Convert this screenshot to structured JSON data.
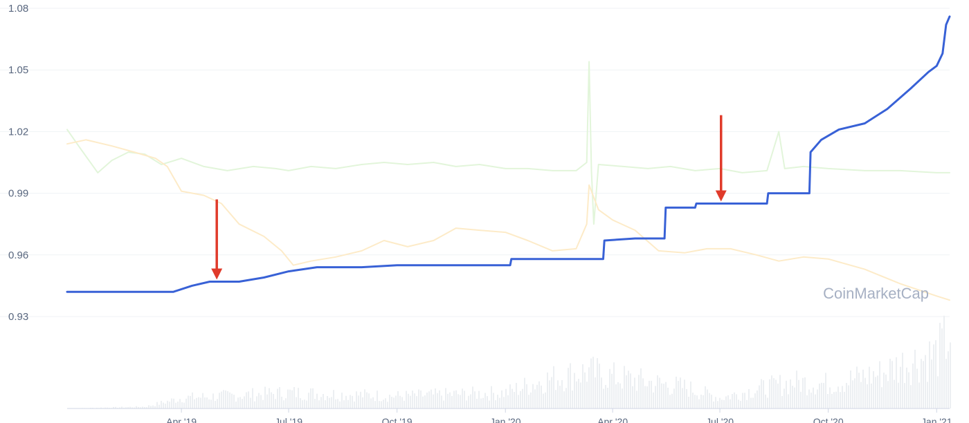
{
  "chart_data": {
    "type": "line",
    "title": "",
    "xlabel": "",
    "ylabel": "",
    "watermark": "CoinMarketCap",
    "ylim": [
      0.93,
      1.08
    ],
    "y_ticks": [
      "1.08",
      "1.05",
      "1.02",
      "0.99",
      "0.96",
      "0.93"
    ],
    "y_tick_values": [
      1.08,
      1.05,
      1.02,
      0.99,
      0.96,
      0.93
    ],
    "x_range": [
      "2018-12-25",
      "2021-01-12"
    ],
    "x_ticks": [
      {
        "date": "2019-04-01",
        "label": "Apr '19"
      },
      {
        "date": "2019-07-01",
        "label": "Jul '19"
      },
      {
        "date": "2019-10-01",
        "label": "Oct '19"
      },
      {
        "date": "2020-01-01",
        "label": "Jan '20"
      },
      {
        "date": "2020-04-01",
        "label": "Apr '20"
      },
      {
        "date": "2020-07-01",
        "label": "Jul '20"
      },
      {
        "date": "2020-10-01",
        "label": "Oct '20"
      },
      {
        "date": "2021-01-01",
        "label": "Jan '21"
      }
    ],
    "grid": true,
    "series": [
      {
        "color": "#e2f5da",
        "points": [
          [
            "2018-12-25",
            1.021
          ],
          [
            "2019-01-05",
            1.012
          ],
          [
            "2019-01-20",
            1.0
          ],
          [
            "2019-02-01",
            1.006
          ],
          [
            "2019-02-15",
            1.01
          ],
          [
            "2019-03-01",
            1.009
          ],
          [
            "2019-03-15",
            1.004
          ],
          [
            "2019-04-01",
            1.007
          ],
          [
            "2019-04-20",
            1.003
          ],
          [
            "2019-05-10",
            1.001
          ],
          [
            "2019-06-01",
            1.003
          ],
          [
            "2019-06-20",
            1.002
          ],
          [
            "2019-07-01",
            1.001
          ],
          [
            "2019-07-20",
            1.003
          ],
          [
            "2019-08-10",
            1.002
          ],
          [
            "2019-09-01",
            1.004
          ],
          [
            "2019-09-20",
            1.005
          ],
          [
            "2019-10-10",
            1.004
          ],
          [
            "2019-11-01",
            1.005
          ],
          [
            "2019-11-20",
            1.003
          ],
          [
            "2019-12-10",
            1.004
          ],
          [
            "2020-01-01",
            1.002
          ],
          [
            "2020-01-20",
            1.002
          ],
          [
            "2020-02-10",
            1.001
          ],
          [
            "2020-03-01",
            1.001
          ],
          [
            "2020-03-10",
            1.005
          ],
          [
            "2020-03-12",
            1.054
          ],
          [
            "2020-03-14",
            1.001
          ],
          [
            "2020-03-16",
            0.975
          ],
          [
            "2020-03-20",
            1.004
          ],
          [
            "2020-04-10",
            1.003
          ],
          [
            "2020-05-01",
            1.002
          ],
          [
            "2020-05-20",
            1.003
          ],
          [
            "2020-06-10",
            1.001
          ],
          [
            "2020-07-01",
            1.002
          ],
          [
            "2020-07-20",
            1.0
          ],
          [
            "2020-08-10",
            1.001
          ],
          [
            "2020-08-20",
            1.02
          ],
          [
            "2020-08-25",
            1.002
          ],
          [
            "2020-09-10",
            1.003
          ],
          [
            "2020-10-01",
            1.002
          ],
          [
            "2020-11-01",
            1.001
          ],
          [
            "2020-12-01",
            1.001
          ],
          [
            "2021-01-01",
            1.0
          ],
          [
            "2021-01-12",
            1.0
          ]
        ]
      },
      {
        "color": "#fdebc8",
        "points": [
          [
            "2018-12-25",
            1.014
          ],
          [
            "2019-01-10",
            1.016
          ],
          [
            "2019-02-01",
            1.013
          ],
          [
            "2019-02-20",
            1.01
          ],
          [
            "2019-03-10",
            1.007
          ],
          [
            "2019-03-20",
            1.003
          ],
          [
            "2019-04-01",
            0.991
          ],
          [
            "2019-04-20",
            0.989
          ],
          [
            "2019-05-05",
            0.985
          ],
          [
            "2019-05-20",
            0.975
          ],
          [
            "2019-06-10",
            0.969
          ],
          [
            "2019-06-25",
            0.962
          ],
          [
            "2019-07-05",
            0.955
          ],
          [
            "2019-07-20",
            0.957
          ],
          [
            "2019-08-10",
            0.959
          ],
          [
            "2019-09-01",
            0.962
          ],
          [
            "2019-09-20",
            0.967
          ],
          [
            "2019-10-10",
            0.964
          ],
          [
            "2019-11-01",
            0.967
          ],
          [
            "2019-11-20",
            0.973
          ],
          [
            "2019-12-10",
            0.972
          ],
          [
            "2020-01-01",
            0.971
          ],
          [
            "2020-01-20",
            0.967
          ],
          [
            "2020-02-10",
            0.962
          ],
          [
            "2020-03-01",
            0.963
          ],
          [
            "2020-03-10",
            0.975
          ],
          [
            "2020-03-12",
            0.994
          ],
          [
            "2020-03-20",
            0.982
          ],
          [
            "2020-04-01",
            0.977
          ],
          [
            "2020-04-20",
            0.972
          ],
          [
            "2020-05-10",
            0.962
          ],
          [
            "2020-06-01",
            0.961
          ],
          [
            "2020-06-20",
            0.963
          ],
          [
            "2020-07-10",
            0.963
          ],
          [
            "2020-08-01",
            0.96
          ],
          [
            "2020-08-20",
            0.957
          ],
          [
            "2020-09-10",
            0.959
          ],
          [
            "2020-10-01",
            0.958
          ],
          [
            "2020-11-01",
            0.953
          ],
          [
            "2020-12-01",
            0.946
          ],
          [
            "2021-01-01",
            0.94
          ],
          [
            "2021-01-12",
            0.938
          ]
        ]
      },
      {
        "color": "#3861d6",
        "points": [
          [
            "2018-12-25",
            0.942
          ],
          [
            "2019-03-25",
            0.942
          ],
          [
            "2019-04-10",
            0.945
          ],
          [
            "2019-04-25",
            0.947
          ],
          [
            "2019-05-20",
            0.947
          ],
          [
            "2019-06-10",
            0.949
          ],
          [
            "2019-07-01",
            0.952
          ],
          [
            "2019-07-25",
            0.954
          ],
          [
            "2019-09-01",
            0.954
          ],
          [
            "2019-10-01",
            0.955
          ],
          [
            "2019-12-01",
            0.955
          ],
          [
            "2020-01-05",
            0.955
          ],
          [
            "2020-01-06",
            0.958
          ],
          [
            "2020-03-24",
            0.958
          ],
          [
            "2020-03-25",
            0.967
          ],
          [
            "2020-04-20",
            0.968
          ],
          [
            "2020-05-15",
            0.968
          ],
          [
            "2020-05-16",
            0.983
          ],
          [
            "2020-06-10",
            0.983
          ],
          [
            "2020-06-11",
            0.985
          ],
          [
            "2020-08-10",
            0.985
          ],
          [
            "2020-08-11",
            0.99
          ],
          [
            "2020-09-15",
            0.99
          ],
          [
            "2020-09-16",
            1.01
          ],
          [
            "2020-09-25",
            1.016
          ],
          [
            "2020-10-10",
            1.021
          ],
          [
            "2020-11-01",
            1.024
          ],
          [
            "2020-11-20",
            1.031
          ],
          [
            "2020-12-10",
            1.041
          ],
          [
            "2020-12-25",
            1.049
          ],
          [
            "2021-01-01",
            1.052
          ],
          [
            "2021-01-06",
            1.058
          ],
          [
            "2021-01-09",
            1.072
          ],
          [
            "2021-01-12",
            1.076
          ]
        ]
      }
    ],
    "annotations": [
      {
        "type": "arrow",
        "color": "#e03a2a",
        "date": "2019-05-01",
        "from_value": 0.987,
        "to_value": 0.948
      },
      {
        "type": "arrow",
        "color": "#e03a2a",
        "date": "2020-07-02",
        "from_value": 1.028,
        "to_value": 0.986
      }
    ],
    "volume": {
      "color": "#eceff2",
      "relative_levels": [
        [
          "2018-12-25",
          0.0
        ],
        [
          "2019-03-01",
          0.02
        ],
        [
          "2019-04-01",
          0.12
        ],
        [
          "2019-06-01",
          0.16
        ],
        [
          "2019-07-01",
          0.18
        ],
        [
          "2019-10-01",
          0.14
        ],
        [
          "2020-01-01",
          0.18
        ],
        [
          "2020-02-01",
          0.32
        ],
        [
          "2020-03-10",
          0.42
        ],
        [
          "2020-04-01",
          0.36
        ],
        [
          "2020-05-01",
          0.3
        ],
        [
          "2020-06-01",
          0.24
        ],
        [
          "2020-07-01",
          0.12
        ],
        [
          "2020-08-01",
          0.22
        ],
        [
          "2020-09-01",
          0.3
        ],
        [
          "2020-10-01",
          0.28
        ],
        [
          "2020-11-15",
          0.4
        ],
        [
          "2020-12-01",
          0.5
        ],
        [
          "2021-01-01",
          0.62
        ],
        [
          "2021-01-12",
          0.85
        ]
      ]
    }
  }
}
